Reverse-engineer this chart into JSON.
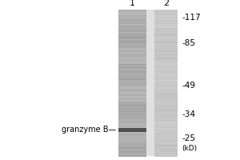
{
  "background_color": "#ffffff",
  "fig_width": 3.0,
  "fig_height": 2.0,
  "dpi": 100,
  "lane_labels": [
    "1",
    "2"
  ],
  "mw_markers": [
    117,
    85,
    49,
    34,
    25
  ],
  "mw_labels": [
    "-117",
    "-85",
    "-49",
    "-34",
    "-25"
  ],
  "kd_label": "(kD)",
  "band_label": "granzyme B—",
  "band_mw": 28,
  "band_label_fontsize": 7.0,
  "marker_fontsize": 7.5,
  "lane_num_fontsize": 8.0,
  "lane1_gray": 0.68,
  "lane2_gray": 0.78,
  "band_gray": 0.38,
  "gel_bg_gray": 0.82
}
